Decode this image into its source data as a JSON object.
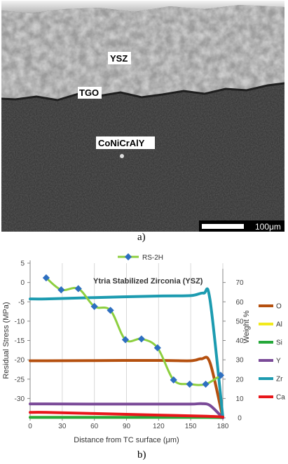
{
  "figure": {
    "caption_a": "a)",
    "caption_b": "b)",
    "micrograph": {
      "labels": {
        "ysz": "YSZ",
        "tgo": "TGO",
        "bond_coat": "CoNiCrAlY"
      },
      "scale_bar": "100μm"
    }
  },
  "chart_data": {
    "type": "line",
    "annotation": "Ytria Stabilized Zirconia (YSZ)",
    "xlabel": "Distance from TC surface (μm)",
    "ylabel_left": "Residual Stress  (MPa)",
    "ylabel_right": "Weight %",
    "xlim": [
      0,
      180
    ],
    "x_ticks": [
      0,
      30,
      60,
      90,
      120,
      150,
      180
    ],
    "ylim_left": [
      -35,
      5
    ],
    "y_ticks_left": [
      5,
      0,
      -5,
      -10,
      -15,
      -20,
      -25,
      -30
    ],
    "ylim_right": [
      0,
      80
    ],
    "y_ticks_right": [
      0,
      10,
      20,
      30,
      40,
      50,
      60,
      70
    ],
    "legend_top": "RS-2H",
    "legend_right": [
      "O",
      "Al",
      "Si",
      "Y",
      "Zr",
      "Ca"
    ],
    "stress_series": {
      "name": "RS-2H",
      "color": "#8dcf3f",
      "marker_color": "#2e6fc0",
      "x": [
        15,
        29,
        45,
        60,
        75,
        89,
        104,
        119,
        134,
        149,
        164,
        178
      ],
      "y": [
        1.2,
        -1.9,
        -1.6,
        -6.2,
        -7.2,
        -14.8,
        -14.6,
        -16.9,
        -25.2,
        -26.3,
        -26.3,
        -24.0
      ]
    },
    "element_series": [
      {
        "name": "O",
        "color": "#b5500f",
        "x": [
          0,
          15,
          60,
          120,
          150,
          160,
          168,
          180
        ],
        "y": [
          29.5,
          29.5,
          29.6,
          29.7,
          29.5,
          30.5,
          28.5,
          0
        ]
      },
      {
        "name": "Al",
        "color": "#f2ea1c",
        "x": [
          0,
          15,
          60,
          120,
          165,
          180
        ],
        "y": [
          0.3,
          0.3,
          0.3,
          0.3,
          0.3,
          0.2
        ]
      },
      {
        "name": "Si",
        "color": "#25a83a",
        "x": [
          0,
          15,
          60,
          120,
          165,
          180
        ],
        "y": [
          0.2,
          0.2,
          0.2,
          0.2,
          0.2,
          0.1
        ]
      },
      {
        "name": "Y",
        "color": "#7a4a98",
        "x": [
          0,
          15,
          60,
          120,
          150,
          160,
          168,
          180
        ],
        "y": [
          7.2,
          7.2,
          7.1,
          7.1,
          7.1,
          7.3,
          6.4,
          0
        ]
      },
      {
        "name": "Zr",
        "color": "#1c9bb0",
        "x": [
          0,
          15,
          60,
          120,
          150,
          162,
          168,
          180
        ],
        "y": [
          61.5,
          61.5,
          62.2,
          63.0,
          63.2,
          64.5,
          61.0,
          0.5
        ]
      },
      {
        "name": "Ca",
        "color": "#e8161a",
        "x": [
          0,
          15,
          60,
          120,
          165,
          180
        ],
        "y": [
          2.8,
          2.8,
          2.2,
          1.4,
          0.8,
          0.4
        ]
      }
    ]
  }
}
